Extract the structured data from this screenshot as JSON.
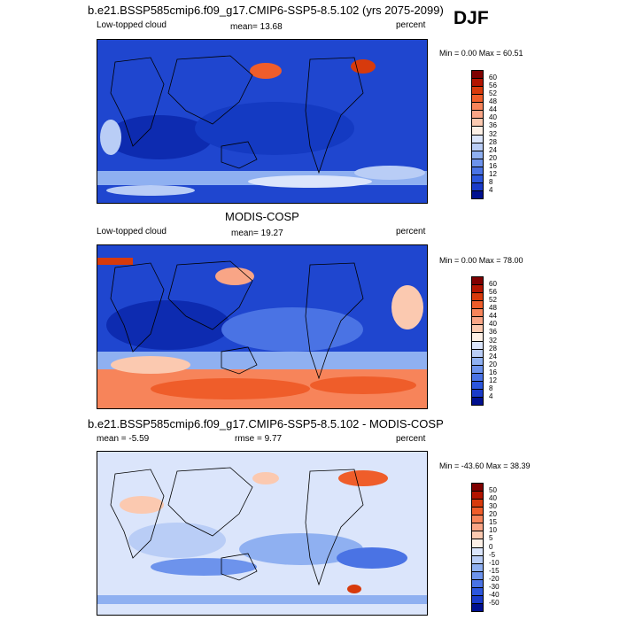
{
  "season": "DJF",
  "panels": [
    {
      "title": "b.e21.BSSP585cmip6.f09_g17.CMIP6-SSP5-8.5.102 (yrs 2075-2099)",
      "left_label": "Low-topped cloud",
      "center_label": "mean=  13.68",
      "right_label": "percent",
      "minmax": "Min =   0.00 Max =  60.51",
      "colorbar": {
        "levels": [
          "60",
          "56",
          "52",
          "48",
          "44",
          "40",
          "36",
          "32",
          "28",
          "24",
          "20",
          "16",
          "12",
          "8",
          "4"
        ],
        "colors": [
          "#7f0000",
          "#b21400",
          "#d73a0c",
          "#ef5d2a",
          "#f7845a",
          "#f9a586",
          "#fbc9b0",
          "#fdf0e6",
          "#dbe5fb",
          "#b9cdf6",
          "#8fb0f1",
          "#6d93ec",
          "#4a73e4",
          "#2c56dc",
          "#1a3bc9",
          "#00108f"
        ]
      }
    },
    {
      "title": "MODIS-COSP",
      "left_label": "Low-topped cloud",
      "center_label": "mean=  19.27",
      "right_label": "percent",
      "minmax": "Min =   0.00 Max =  78.00",
      "colorbar": {
        "levels": [
          "60",
          "56",
          "52",
          "48",
          "44",
          "40",
          "36",
          "32",
          "28",
          "24",
          "20",
          "16",
          "12",
          "8",
          "4"
        ],
        "colors": [
          "#7f0000",
          "#b21400",
          "#d73a0c",
          "#ef5d2a",
          "#f7845a",
          "#f9a586",
          "#fbc9b0",
          "#fdf0e6",
          "#dbe5fb",
          "#b9cdf6",
          "#8fb0f1",
          "#6d93ec",
          "#4a73e4",
          "#2c56dc",
          "#1a3bc9",
          "#00108f"
        ]
      }
    },
    {
      "title": "b.e21.BSSP585cmip6.f09_g17.CMIP6-SSP5-8.5.102 - MODIS-COSP",
      "left_label": "mean =  -5.59",
      "center_label": "rmse =   9.77",
      "right_label": "percent",
      "minmax": "Min = -43.60 Max =  38.39",
      "colorbar": {
        "levels": [
          "50",
          "40",
          "30",
          "20",
          "15",
          "10",
          "5",
          "0",
          "-5",
          "-10",
          "-15",
          "-20",
          "-30",
          "-40",
          "-50"
        ],
        "colors": [
          "#7f0000",
          "#b21400",
          "#d73a0c",
          "#ef5d2a",
          "#f7845a",
          "#f9a586",
          "#fbc9b0",
          "#fdf0e6",
          "#dbe5fb",
          "#b9cdf6",
          "#8fb0f1",
          "#6d93ec",
          "#4a73e4",
          "#2c56dc",
          "#1a3bc9",
          "#00108f"
        ]
      }
    }
  ],
  "chart_data": [
    {
      "type": "heatmap",
      "title": "b.e21.BSSP585cmip6.f09_g17.CMIP6-SSP5-8.5.102 (yrs 2075-2099)",
      "variable": "Low-topped cloud",
      "units": "percent",
      "mean": 13.68,
      "min": 0.0,
      "max": 60.51,
      "contour_levels": [
        4,
        8,
        12,
        16,
        20,
        24,
        28,
        32,
        36,
        40,
        44,
        48,
        52,
        56,
        60
      ]
    },
    {
      "type": "heatmap",
      "title": "MODIS-COSP",
      "variable": "Low-topped cloud",
      "units": "percent",
      "mean": 19.27,
      "min": 0.0,
      "max": 78.0,
      "contour_levels": [
        4,
        8,
        12,
        16,
        20,
        24,
        28,
        32,
        36,
        40,
        44,
        48,
        52,
        56,
        60
      ]
    },
    {
      "type": "heatmap",
      "title": "b.e21.BSSP585cmip6.f09_g17.CMIP6-SSP5-8.5.102 - MODIS-COSP",
      "units": "percent",
      "mean": -5.59,
      "rmse": 9.77,
      "min": -43.6,
      "max": 38.39,
      "contour_levels": [
        -50,
        -40,
        -30,
        -20,
        -15,
        -10,
        -5,
        0,
        5,
        10,
        15,
        20,
        30,
        40,
        50
      ]
    }
  ]
}
